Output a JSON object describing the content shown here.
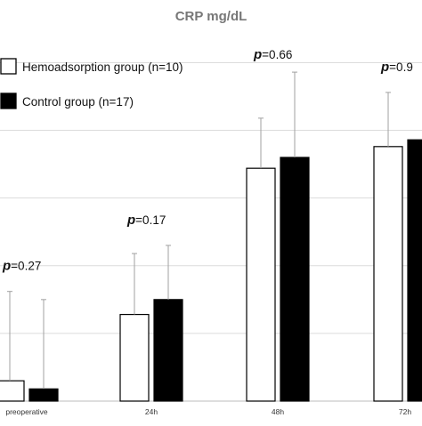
{
  "chart_data": {
    "type": "bar",
    "title": "CRP mg/dL",
    "xlabel": "",
    "ylabel": "",
    "categories": [
      "preoperative",
      "24h",
      "48h",
      "72h"
    ],
    "series": [
      {
        "name": "Hemoadsorption group (n=10)",
        "color": "#ffffff",
        "values": [
          1.5,
          6.4,
          17.2,
          18.8
        ],
        "error": [
          6.6,
          4.5,
          3.7,
          4.0
        ]
      },
      {
        "name": "Control group (n=17)",
        "color": "#000000",
        "values": [
          0.9,
          7.5,
          18.0,
          19.3
        ],
        "error": [
          6.6,
          4.0,
          6.3,
          null
        ]
      }
    ],
    "p_values": [
      {
        "label": "p",
        "value": "=0.27"
      },
      {
        "label": "p",
        "value": "=0.17"
      },
      {
        "label": "p",
        "value": "=0.66"
      },
      {
        "label": "p",
        "value": "=0.9"
      }
    ],
    "ylim": [
      0,
      27
    ],
    "grid": true,
    "legend_position": "top-left"
  }
}
